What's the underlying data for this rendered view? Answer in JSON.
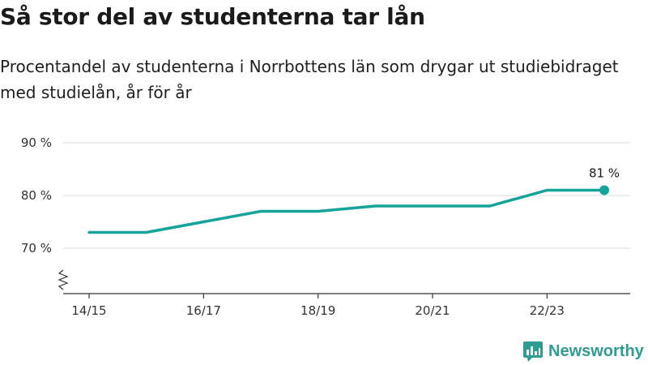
{
  "title": "Så stor del av studenterna tar lån",
  "subtitle": "Procentandel av studenterna i Norrbottens län som drygar ut studiebidraget med studielån, år för år",
  "brand": "Newsworthy",
  "colors": {
    "line": "#14a49a",
    "grid": "#dcdcdc",
    "axis": "#333333",
    "brand": "#2f9c93"
  },
  "chart_data": {
    "type": "line",
    "x": [
      "14/15",
      "15/16",
      "16/17",
      "17/18",
      "18/19",
      "19/20",
      "20/21",
      "21/22",
      "22/23",
      "23/24"
    ],
    "values": [
      73,
      73,
      75,
      77,
      77,
      78,
      78,
      78,
      81,
      81
    ],
    "x_tick_labels": [
      "14/15",
      "16/17",
      "18/19",
      "20/21",
      "22/23"
    ],
    "y_ticks": [
      70,
      80,
      90
    ],
    "y_tick_labels": [
      "70 %",
      "80 %",
      "90 %"
    ],
    "ylim": [
      65,
      90
    ],
    "y_axis_broken": true,
    "grid": true,
    "last_value_label": "81 %"
  }
}
